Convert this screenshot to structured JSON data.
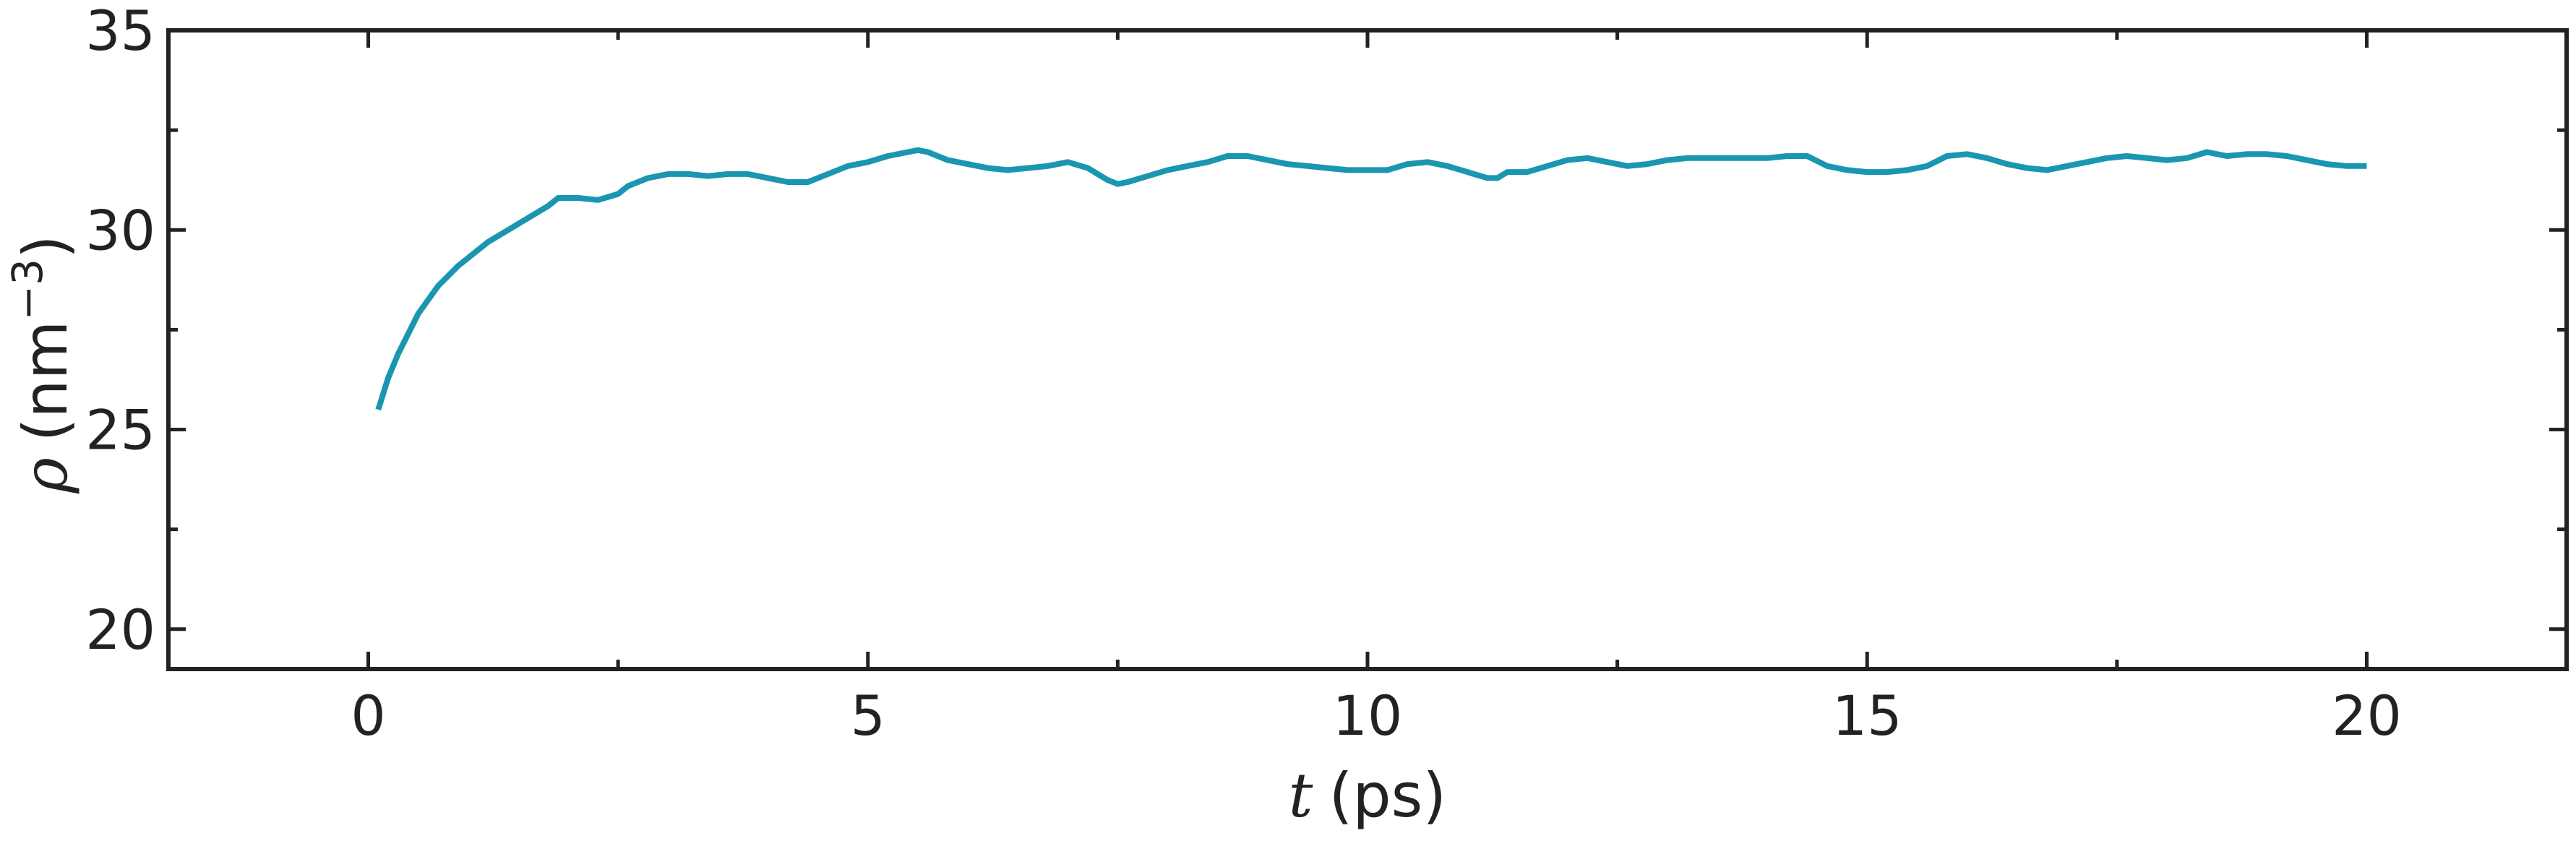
{
  "chart_data": {
    "type": "line",
    "xlabel": {
      "var": "t",
      "unit": "(ps)"
    },
    "ylabel": {
      "var": "ρ",
      "unit": "(nm",
      "exp": "−3",
      "close": ")"
    },
    "xlim": [
      -2,
      22
    ],
    "ylim": [
      19,
      35
    ],
    "xticks": [
      0,
      5,
      10,
      15,
      20
    ],
    "xtick_labels": [
      "0",
      "5",
      "10",
      "15",
      "20"
    ],
    "xminor": [
      2.5,
      7.5,
      12.5,
      17.5
    ],
    "yticks": [
      20,
      25,
      30,
      35
    ],
    "ytick_labels": [
      "20",
      "25",
      "30",
      "35"
    ],
    "yminor": [
      22.5,
      27.5,
      32.5
    ],
    "grid": false,
    "colors": {
      "series": "#1a96b0",
      "axes": "#222222"
    },
    "series": [
      {
        "x": [
          0.1,
          0.2,
          0.3,
          0.5,
          0.7,
          0.9,
          1.0,
          1.2,
          1.4,
          1.6,
          1.8,
          1.9,
          2.0,
          2.1,
          2.3,
          2.5,
          2.6,
          2.8,
          3.0,
          3.2,
          3.4,
          3.6,
          3.8,
          4.0,
          4.2,
          4.4,
          4.6,
          4.8,
          5.0,
          5.2,
          5.4,
          5.5,
          5.6,
          5.8,
          6.0,
          6.2,
          6.4,
          6.6,
          6.8,
          7.0,
          7.2,
          7.4,
          7.5,
          7.6,
          7.8,
          8.0,
          8.2,
          8.4,
          8.6,
          8.8,
          9.0,
          9.2,
          9.4,
          9.6,
          9.8,
          10.0,
          10.2,
          10.4,
          10.6,
          10.8,
          11.0,
          11.2,
          11.3,
          11.4,
          11.6,
          11.8,
          12.0,
          12.2,
          12.4,
          12.6,
          12.8,
          13.0,
          13.2,
          13.4,
          13.6,
          13.8,
          14.0,
          14.2,
          14.4,
          14.6,
          14.8,
          15.0,
          15.2,
          15.4,
          15.6,
          15.8,
          16.0,
          16.2,
          16.4,
          16.6,
          16.8,
          17.0,
          17.2,
          17.4,
          17.6,
          17.8,
          18.0,
          18.2,
          18.4,
          18.6,
          18.8,
          19.0,
          19.2,
          19.4,
          19.6,
          19.8,
          20.0
        ],
        "values": [
          25.5,
          26.3,
          26.9,
          27.9,
          28.6,
          29.1,
          29.3,
          29.7,
          30.0,
          30.3,
          30.6,
          30.8,
          30.8,
          30.8,
          30.75,
          30.9,
          31.1,
          31.3,
          31.4,
          31.4,
          31.35,
          31.4,
          31.4,
          31.3,
          31.2,
          31.2,
          31.4,
          31.6,
          31.7,
          31.85,
          31.95,
          32.0,
          31.95,
          31.75,
          31.65,
          31.55,
          31.5,
          31.55,
          31.6,
          31.7,
          31.55,
          31.25,
          31.15,
          31.2,
          31.35,
          31.5,
          31.6,
          31.7,
          31.85,
          31.85,
          31.75,
          31.65,
          31.6,
          31.55,
          31.5,
          31.5,
          31.5,
          31.65,
          31.7,
          31.6,
          31.45,
          31.3,
          31.3,
          31.45,
          31.45,
          31.6,
          31.75,
          31.8,
          31.7,
          31.6,
          31.65,
          31.75,
          31.8,
          31.8,
          31.8,
          31.8,
          31.8,
          31.85,
          31.85,
          31.6,
          31.5,
          31.45,
          31.45,
          31.5,
          31.6,
          31.85,
          31.9,
          31.8,
          31.65,
          31.55,
          31.5,
          31.6,
          31.7,
          31.8,
          31.85,
          31.8,
          31.75,
          31.8,
          31.95,
          31.85,
          31.9,
          31.9,
          31.85,
          31.75,
          31.65,
          31.6,
          31.6
        ]
      }
    ]
  }
}
